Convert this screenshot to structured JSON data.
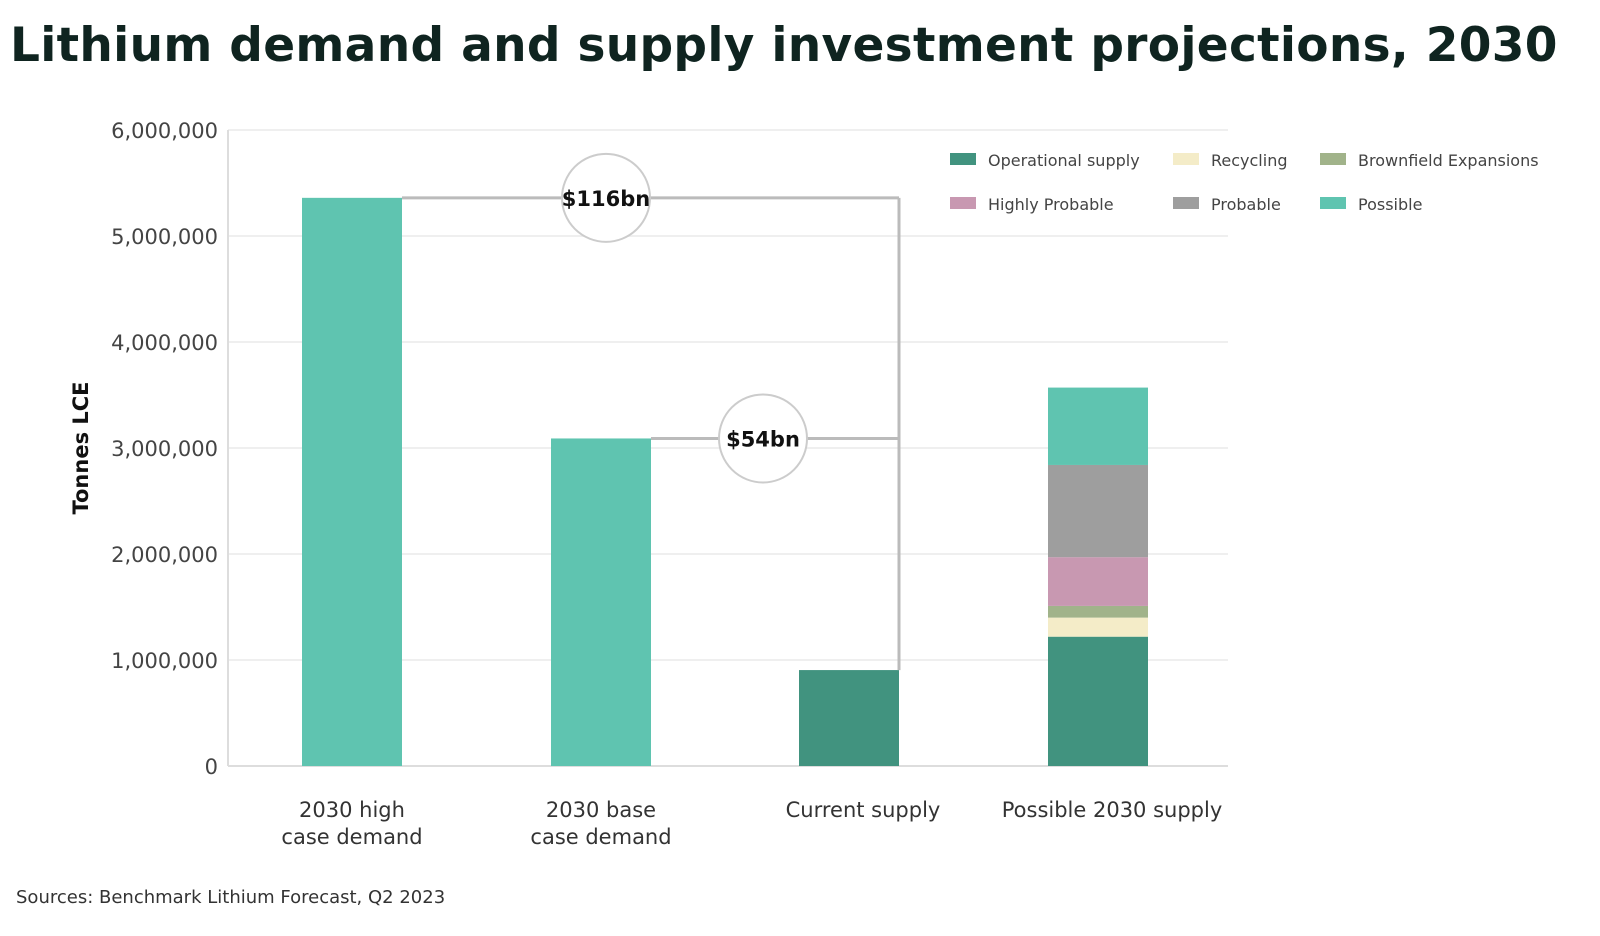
{
  "chart_data": {
    "type": "bar",
    "stacked": true,
    "title": "Lithium demand and supply investment projections, 2030",
    "ylabel": "Tonnes LCE",
    "xlabel": "",
    "ylim": [
      0,
      6000000
    ],
    "yticks": [
      "0",
      "1,000,000",
      "2,000,000",
      "3,000,000",
      "4,000,000",
      "5,000,000",
      "6,000,000"
    ],
    "ytick_values": [
      0,
      1000000,
      2000000,
      3000000,
      4000000,
      5000000,
      6000000
    ],
    "grid": true,
    "legend_placement": "top-right",
    "categories": [
      [
        "2030 high",
        "case demand"
      ],
      [
        "2030 base",
        "case demand"
      ],
      [
        "Current supply"
      ],
      [
        "Possible 2030 supply"
      ]
    ],
    "series": [
      {
        "name": "Operational supply",
        "color": "#41937f",
        "values": [
          0,
          0,
          905000,
          1220000
        ]
      },
      {
        "name": "Recycling",
        "color": "#f4ecc8",
        "values": [
          0,
          0,
          0,
          180000
        ]
      },
      {
        "name": "Brownfield Expansions",
        "color": "#a1b38a",
        "values": [
          0,
          0,
          0,
          110000
        ]
      },
      {
        "name": "Highly Probable",
        "color": "#c898b1",
        "values": [
          0,
          0,
          0,
          460000
        ]
      },
      {
        "name": "Probable",
        "color": "#9e9e9e",
        "values": [
          0,
          0,
          0,
          870000
        ]
      },
      {
        "name": "Possible",
        "color": "#5fc4b0",
        "values": [
          5360000,
          3090000,
          0,
          730000
        ]
      }
    ],
    "annotations": [
      {
        "label": "$116bn",
        "from_category": 0,
        "to_category": 2
      },
      {
        "label": "$54bn",
        "from_category": 1,
        "to_category": 2
      }
    ]
  },
  "source": "Sources: Benchmark Lithium Forecast, Q2 2023"
}
